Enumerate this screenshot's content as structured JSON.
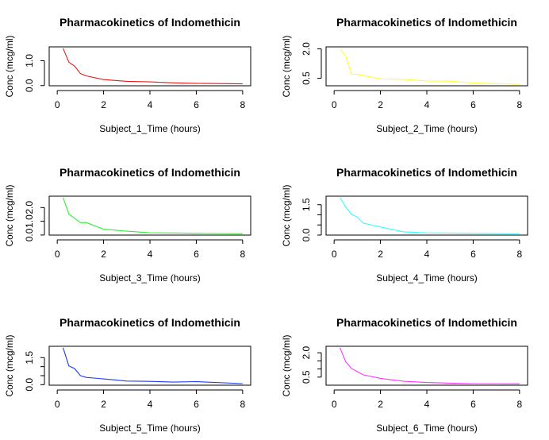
{
  "chart_data": [
    {
      "type": "line",
      "title": "Pharmacokinetics of Indomethicin",
      "xlabel": "Subject_1_Time (hours)",
      "ylabel": "Conc (mcg/ml)",
      "color": "#e41a1c",
      "xlim": [
        0,
        8
      ],
      "ylim": [
        0.05,
        1.5
      ],
      "xticks": [
        0,
        2,
        4,
        6,
        8
      ],
      "yticks": [
        0.0,
        1.0
      ],
      "ytick_labels": [
        "0.0",
        "1.0"
      ],
      "x": [
        0.25,
        0.5,
        0.75,
        1,
        1.25,
        2,
        3,
        4,
        5,
        6,
        8
      ],
      "y": [
        1.5,
        0.94,
        0.78,
        0.48,
        0.39,
        0.24,
        0.17,
        0.15,
        0.11,
        0.09,
        0.07
      ]
    },
    {
      "type": "line",
      "title": "Pharmacokinetics of Indomethicin",
      "xlabel": "Subject_2_Time (hours)",
      "ylabel": "Conc (mcg/ml)",
      "color": "#ffff33",
      "xlim": [
        0,
        8
      ],
      "ylim": [
        0.19,
        2.03
      ],
      "xticks": [
        0,
        2,
        4,
        6,
        8
      ],
      "yticks": [
        0.5,
        2.0
      ],
      "ytick_labels": [
        "0.5",
        "2.0"
      ],
      "x": [
        0.25,
        0.5,
        0.75,
        1,
        1.25,
        2,
        3,
        4,
        5,
        6,
        8
      ],
      "y": [
        2.03,
        1.63,
        0.71,
        0.7,
        0.64,
        0.47,
        0.45,
        0.36,
        0.35,
        0.26,
        0.19
      ]
    },
    {
      "type": "line",
      "title": "Pharmacokinetics of Indomethicin",
      "xlabel": "Subject_3_Time (hours)",
      "ylabel": "Conc (mcg/ml)",
      "color": "#33ee33",
      "xlim": [
        0,
        8
      ],
      "ylim": [
        0.1,
        2.72
      ],
      "xticks": [
        0,
        2,
        4,
        6,
        8
      ],
      "yticks": [
        0.0,
        1.0,
        2.0
      ],
      "ytick_labels": [
        "0.0",
        "1.0",
        "2.0"
      ],
      "x": [
        0.25,
        0.5,
        0.75,
        1,
        1.25,
        2,
        3,
        4,
        5,
        6,
        8
      ],
      "y": [
        2.72,
        1.52,
        1.22,
        0.9,
        0.91,
        0.42,
        0.28,
        0.16,
        0.15,
        0.13,
        0.1
      ]
    },
    {
      "type": "line",
      "title": "Pharmacokinetics of Indomethicin",
      "xlabel": "Subject_4_Time (hours)",
      "ylabel": "Conc (mcg/ml)",
      "color": "#33ffff",
      "xlim": [
        0,
        8
      ],
      "ylim": [
        0.07,
        1.85
      ],
      "xticks": [
        0,
        2,
        4,
        6,
        8
      ],
      "yticks": [
        0.0,
        0.5,
        1.0,
        1.5
      ],
      "ytick_labels": [
        "0.0",
        "",
        "",
        "1.5"
      ],
      "x": [
        0.25,
        0.5,
        0.75,
        1,
        1.25,
        2,
        3,
        4,
        5,
        6,
        8
      ],
      "y": [
        1.85,
        1.39,
        1.02,
        0.89,
        0.59,
        0.4,
        0.16,
        0.11,
        0.1,
        0.09,
        0.07
      ]
    },
    {
      "type": "line",
      "title": "Pharmacokinetics of Indomethicin",
      "xlabel": "Subject_5_Time (hours)",
      "ylabel": "Conc (mcg/ml)",
      "color": "#1f3cf0",
      "xlim": [
        0,
        8
      ],
      "ylim": [
        0.05,
        2.05
      ],
      "xticks": [
        0,
        2,
        4,
        6,
        8
      ],
      "yticks": [
        0.0,
        0.5,
        1.0,
        1.5
      ],
      "ytick_labels": [
        "0.0",
        "",
        "",
        "1.5"
      ],
      "x": [
        0.25,
        0.5,
        0.75,
        1,
        1.25,
        2,
        3,
        4,
        5,
        6,
        8
      ],
      "y": [
        2.05,
        1.04,
        0.89,
        0.5,
        0.4,
        0.32,
        0.2,
        0.18,
        0.14,
        0.17,
        0.06
      ]
    },
    {
      "type": "line",
      "title": "Pharmacokinetics of Indomethicin",
      "xlabel": "Subject_6_Time (hours)",
      "ylabel": "Conc (mcg/ml)",
      "color": "#ff33ff",
      "xlim": [
        0,
        8
      ],
      "ylim": [
        0.09,
        2.31
      ],
      "xticks": [
        0,
        2,
        4,
        6,
        8
      ],
      "yticks": [
        0.5,
        1.0,
        1.5,
        2.0
      ],
      "ytick_labels": [
        "0.5",
        "",
        "",
        "2.0"
      ],
      "x": [
        0.25,
        0.5,
        0.75,
        1,
        1.25,
        2,
        3,
        4,
        5,
        6,
        8
      ],
      "y": [
        2.31,
        1.44,
        1.03,
        0.84,
        0.64,
        0.42,
        0.24,
        0.17,
        0.13,
        0.1,
        0.09
      ]
    }
  ]
}
